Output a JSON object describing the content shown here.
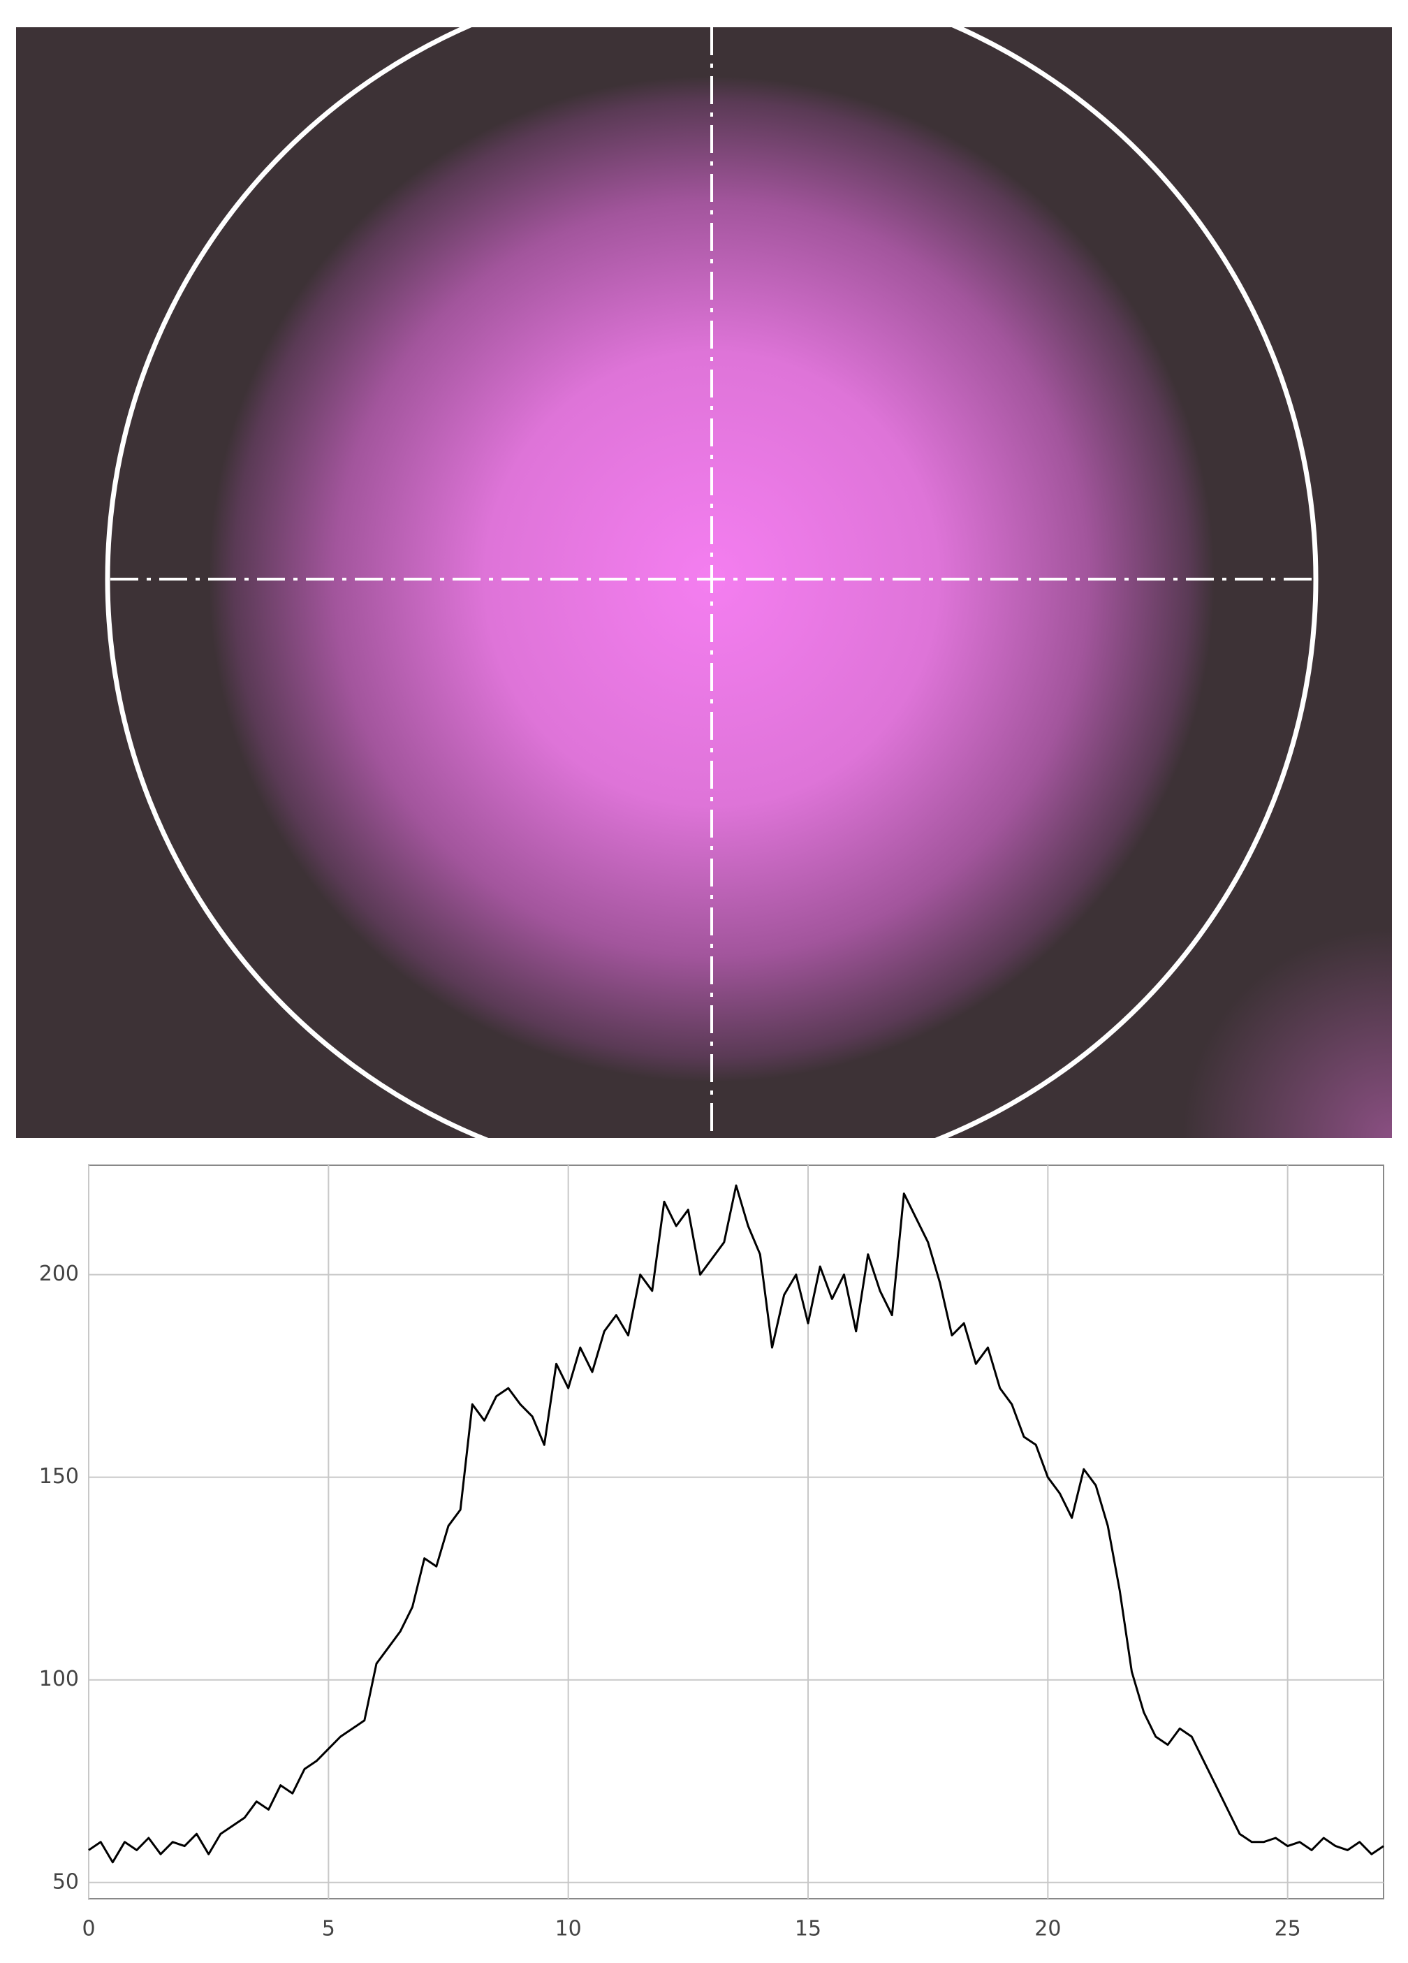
{
  "chart_data": {
    "type": "line",
    "x": [
      0,
      0.25,
      0.5,
      0.75,
      1,
      1.25,
      1.5,
      1.75,
      2,
      2.25,
      2.5,
      2.75,
      3,
      3.25,
      3.5,
      3.75,
      4,
      4.25,
      4.5,
      4.75,
      5,
      5.25,
      5.5,
      5.75,
      6,
      6.25,
      6.5,
      6.75,
      7,
      7.25,
      7.5,
      7.75,
      8,
      8.25,
      8.5,
      8.75,
      9,
      9.25,
      9.5,
      9.75,
      10,
      10.25,
      10.5,
      10.75,
      11,
      11.25,
      11.5,
      11.75,
      12,
      12.25,
      12.5,
      12.75,
      13,
      13.25,
      13.5,
      13.75,
      14,
      14.25,
      14.5,
      14.75,
      15,
      15.25,
      15.5,
      15.75,
      16,
      16.25,
      16.5,
      16.75,
      17,
      17.25,
      17.5,
      17.75,
      18,
      18.25,
      18.5,
      18.75,
      19,
      19.25,
      19.5,
      19.75,
      20,
      20.25,
      20.5,
      20.75,
      21,
      21.25,
      21.5,
      21.75,
      22,
      22.25,
      22.5,
      22.75,
      23,
      23.25,
      23.5,
      23.75,
      24,
      24.25,
      24.5,
      24.75,
      25,
      25.25,
      25.5,
      25.75,
      26,
      26.25,
      26.5,
      26.75,
      27
    ],
    "values": [
      58,
      60,
      55,
      60,
      58,
      61,
      57,
      60,
      59,
      62,
      57,
      62,
      64,
      66,
      70,
      68,
      74,
      72,
      78,
      80,
      83,
      86,
      88,
      90,
      104,
      108,
      112,
      118,
      130,
      128,
      138,
      142,
      168,
      164,
      170,
      172,
      168,
      165,
      158,
      178,
      172,
      182,
      176,
      186,
      190,
      185,
      200,
      196,
      218,
      212,
      216,
      200,
      204,
      208,
      222,
      212,
      205,
      182,
      195,
      200,
      188,
      202,
      194,
      200,
      186,
      205,
      196,
      190,
      220,
      214,
      208,
      198,
      185,
      188,
      178,
      182,
      172,
      168,
      160,
      158,
      150,
      146,
      140,
      152,
      148,
      138,
      122,
      102,
      92,
      86,
      84,
      88,
      86,
      80,
      74,
      68,
      62,
      60,
      60,
      61,
      59,
      60,
      58,
      61,
      59,
      58,
      60,
      57,
      59
    ],
    "color": "#000000",
    "xlim": [
      0,
      27
    ],
    "xticks": [
      0,
      5,
      10,
      15,
      20,
      25
    ],
    "ylim": [
      46,
      227
    ],
    "yticks": [
      50,
      100,
      150,
      200
    ],
    "grid": true
  }
}
